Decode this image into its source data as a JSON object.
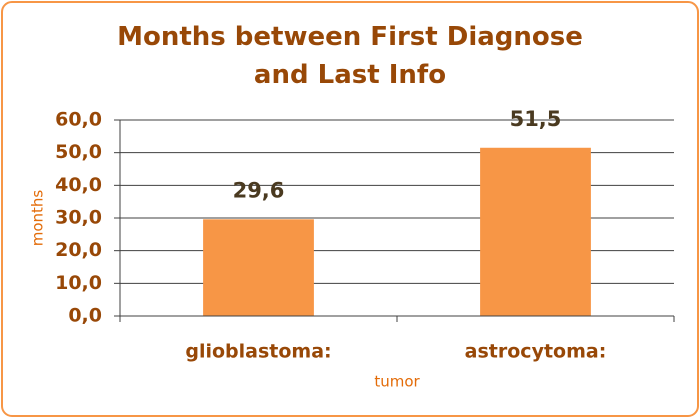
{
  "chart_data": {
    "type": "bar",
    "title": "Months between First Diagnose and Last Info",
    "categories": [
      "glioblastoma:",
      "astrocytoma:"
    ],
    "values": [
      29.6,
      51.5
    ],
    "value_labels": [
      "29,6",
      "51,5"
    ],
    "color": "#f79646",
    "xlabel": "tumor",
    "ylabel": "months",
    "ylim": [
      0,
      60
    ],
    "yticks": [
      {
        "value": 0,
        "label": "0,0"
      },
      {
        "value": 10,
        "label": "10,0"
      },
      {
        "value": 20,
        "label": "20,0"
      },
      {
        "value": 30,
        "label": "30,0"
      },
      {
        "value": 40,
        "label": "40,0"
      },
      {
        "value": 50,
        "label": "50,0"
      },
      {
        "value": 60,
        "label": "60,0"
      }
    ],
    "grid": true
  }
}
